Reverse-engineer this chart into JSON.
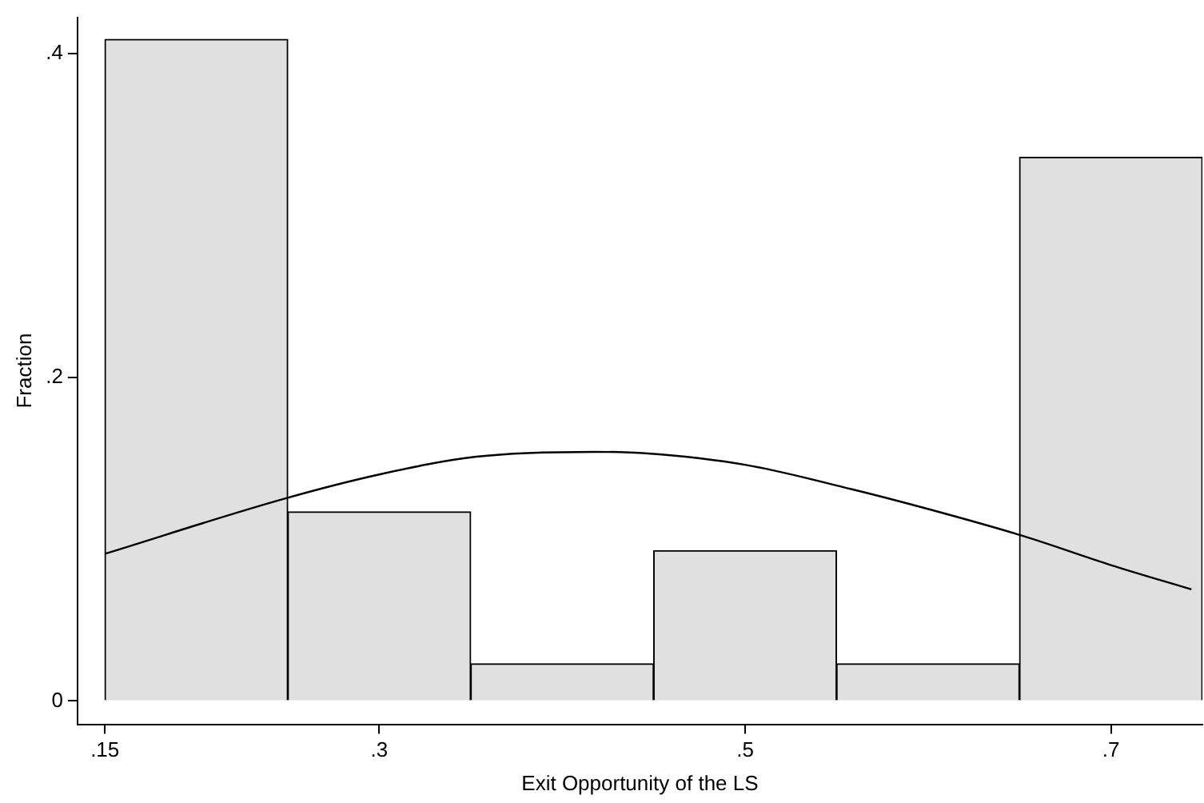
{
  "chart_data": {
    "type": "histogram",
    "xlabel": "Exit Opportunity of the LS",
    "ylabel": "Fraction",
    "bins": [
      0.15,
      0.25,
      0.35,
      0.45,
      0.55,
      0.65,
      0.75
    ],
    "values": [
      0.409,
      0.117,
      0.023,
      0.093,
      0.023,
      0.336
    ],
    "color": "#e0e0e0",
    "series": [
      {
        "type": "line",
        "color": "#000000",
        "x": [
          0.15,
          0.248,
          0.3,
          0.353,
          0.418,
          0.447,
          0.5,
          0.558,
          0.599,
          0.652,
          0.7,
          0.744
        ],
        "values": [
          0.091,
          0.125,
          0.14,
          0.151,
          0.154,
          0.153,
          0.146,
          0.131,
          0.119,
          0.102,
          0.084,
          0.069
        ]
      }
    ],
    "xlim": [
      0.135,
      0.75
    ],
    "xticks": [
      {
        "value": 0.15,
        "label": ".15"
      },
      {
        "value": 0.3,
        "label": ".3"
      },
      {
        "value": 0.5,
        "label": ".5"
      },
      {
        "value": 0.7,
        "label": ".7"
      }
    ],
    "ylim": [
      -0.0144,
      0.4226
    ],
    "yticks": [
      0,
      {
        "value": 0.2,
        "label": ".2"
      },
      {
        "value": 0.4,
        "label": ".4"
      }
    ]
  }
}
